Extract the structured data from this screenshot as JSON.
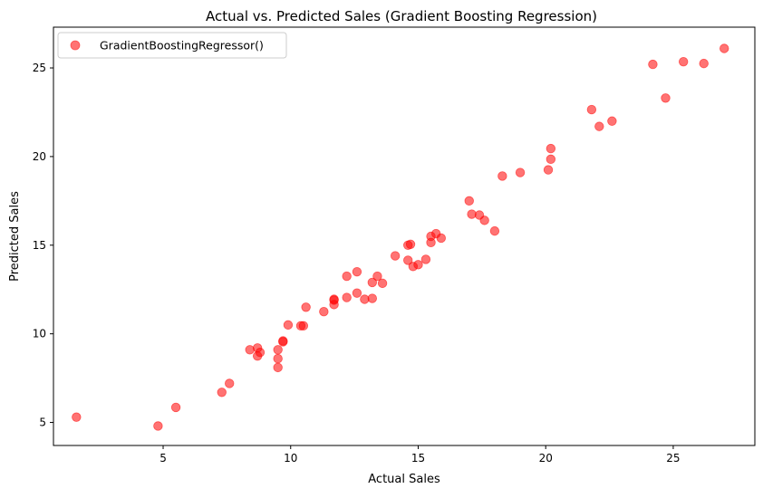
{
  "chart_data": {
    "type": "scatter",
    "title": "Actual vs. Predicted Sales (Gradient Boosting Regression)",
    "xlabel": "Actual Sales",
    "ylabel": "Predicted Sales",
    "xlim": [
      0.7,
      28.2
    ],
    "ylim": [
      3.7,
      27.3
    ],
    "xticks": [
      5,
      10,
      15,
      20,
      25
    ],
    "yticks": [
      5,
      10,
      15,
      20,
      25
    ],
    "grid": false,
    "legend_position": "top-left",
    "series": [
      {
        "name": "GradientBoostingRegressor()",
        "color": "#ff0000",
        "alpha": 0.55,
        "marker": "circle",
        "points": [
          [
            1.6,
            5.3
          ],
          [
            4.8,
            4.8
          ],
          [
            5.5,
            5.85
          ],
          [
            7.3,
            6.7
          ],
          [
            7.6,
            7.2
          ],
          [
            8.4,
            9.1
          ],
          [
            8.7,
            9.2
          ],
          [
            8.7,
            8.75
          ],
          [
            8.8,
            8.95
          ],
          [
            9.5,
            9.1
          ],
          [
            9.5,
            8.6
          ],
          [
            9.5,
            8.1
          ],
          [
            9.7,
            9.6
          ],
          [
            9.7,
            9.55
          ],
          [
            9.9,
            10.5
          ],
          [
            10.4,
            10.45
          ],
          [
            10.5,
            10.45
          ],
          [
            10.6,
            11.5
          ],
          [
            11.3,
            11.25
          ],
          [
            11.7,
            11.9
          ],
          [
            11.7,
            11.95
          ],
          [
            11.7,
            11.65
          ],
          [
            12.2,
            13.25
          ],
          [
            12.2,
            12.05
          ],
          [
            12.6,
            13.5
          ],
          [
            12.6,
            12.3
          ],
          [
            12.9,
            11.95
          ],
          [
            13.2,
            12.9
          ],
          [
            13.2,
            12.0
          ],
          [
            13.4,
            13.25
          ],
          [
            13.6,
            12.85
          ],
          [
            14.1,
            14.4
          ],
          [
            14.6,
            14.15
          ],
          [
            14.6,
            15.0
          ],
          [
            14.7,
            15.05
          ],
          [
            14.8,
            13.8
          ],
          [
            15.0,
            13.9
          ],
          [
            15.3,
            14.2
          ],
          [
            15.5,
            15.5
          ],
          [
            15.5,
            15.15
          ],
          [
            15.7,
            15.65
          ],
          [
            15.9,
            15.4
          ],
          [
            17.0,
            17.5
          ],
          [
            17.1,
            16.75
          ],
          [
            17.4,
            16.7
          ],
          [
            17.6,
            16.4
          ],
          [
            18.0,
            15.8
          ],
          [
            18.3,
            18.9
          ],
          [
            19.0,
            19.1
          ],
          [
            20.1,
            19.25
          ],
          [
            20.2,
            19.85
          ],
          [
            20.2,
            20.45
          ],
          [
            21.8,
            22.65
          ],
          [
            22.1,
            21.7
          ],
          [
            22.6,
            22.0
          ],
          [
            24.2,
            25.2
          ],
          [
            24.7,
            23.3
          ],
          [
            25.4,
            25.35
          ],
          [
            26.2,
            25.25
          ],
          [
            27.0,
            26.1
          ]
        ]
      }
    ]
  }
}
